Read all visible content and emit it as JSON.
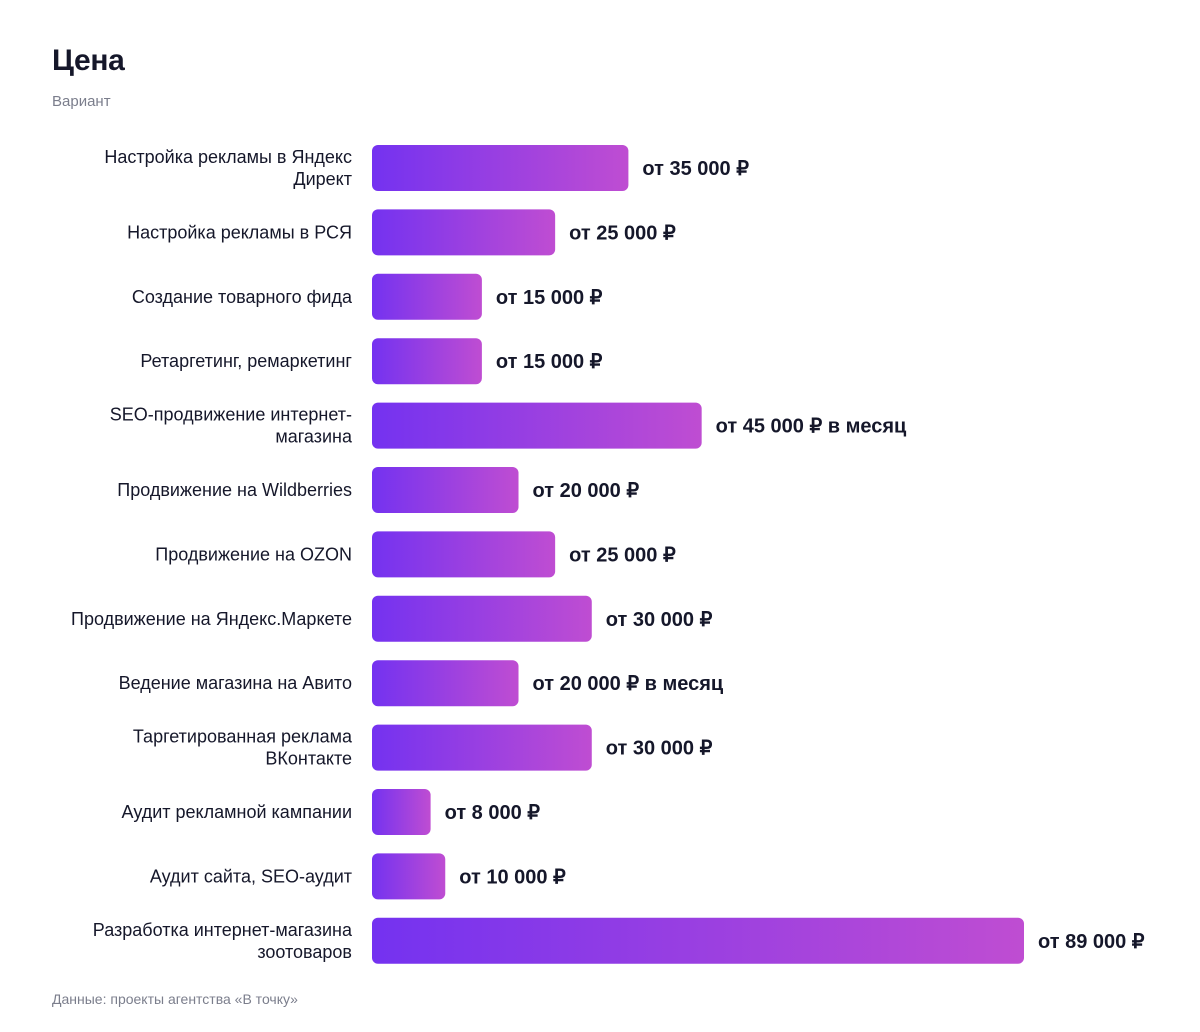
{
  "header": {
    "title": "Цена",
    "subtitle": "Вариант"
  },
  "footer": {
    "source": "Данные: проекты агентства «В точку»"
  },
  "colors": {
    "bar_gradient_start": "#7432f0",
    "bar_gradient_end": "#bf4dd2",
    "label_text": "#15172a",
    "value_text": "#15172a",
    "muted_text": "#7b7e8c"
  },
  "chart_data": {
    "type": "bar",
    "orientation": "horizontal",
    "xlim": [
      0,
      89000
    ],
    "grid": false,
    "categories": [
      [
        "Настройка рекламы в Яндекс",
        "Директ"
      ],
      [
        "Настройка рекламы в РСЯ"
      ],
      [
        "Создание товарного фида"
      ],
      [
        "Ретаргетинг, ремаркетинг"
      ],
      [
        "SEO-продвижение интернет-",
        "магазина"
      ],
      [
        "Продвижение на Wildberries"
      ],
      [
        "Продвижение на OZON"
      ],
      [
        "Продвижение на Яндекс.Маркете"
      ],
      [
        "Ведение магазина на Авито"
      ],
      [
        "Таргетированная реклама",
        "ВКонтакте"
      ],
      [
        "Аудит рекламной кампании"
      ],
      [
        "Аудит сайта, SEO-аудит"
      ],
      [
        "Разработка интернет-магазина",
        "зоотоваров"
      ]
    ],
    "values": [
      35000,
      25000,
      15000,
      15000,
      45000,
      20000,
      25000,
      30000,
      20000,
      30000,
      8000,
      10000,
      89000
    ],
    "value_labels": [
      "от 35 000 ₽",
      "от 25 000 ₽",
      "от 15 000 ₽",
      "от 15 000 ₽",
      "от 45 000 ₽ в месяц",
      "от 20 000 ₽",
      "от 25 000 ₽",
      "от 30 000 ₽",
      "от 20 000 ₽ в месяц",
      "от 30 000 ₽",
      "от 8 000 ₽",
      "от 10 000 ₽",
      "от 89 000 ₽"
    ]
  }
}
